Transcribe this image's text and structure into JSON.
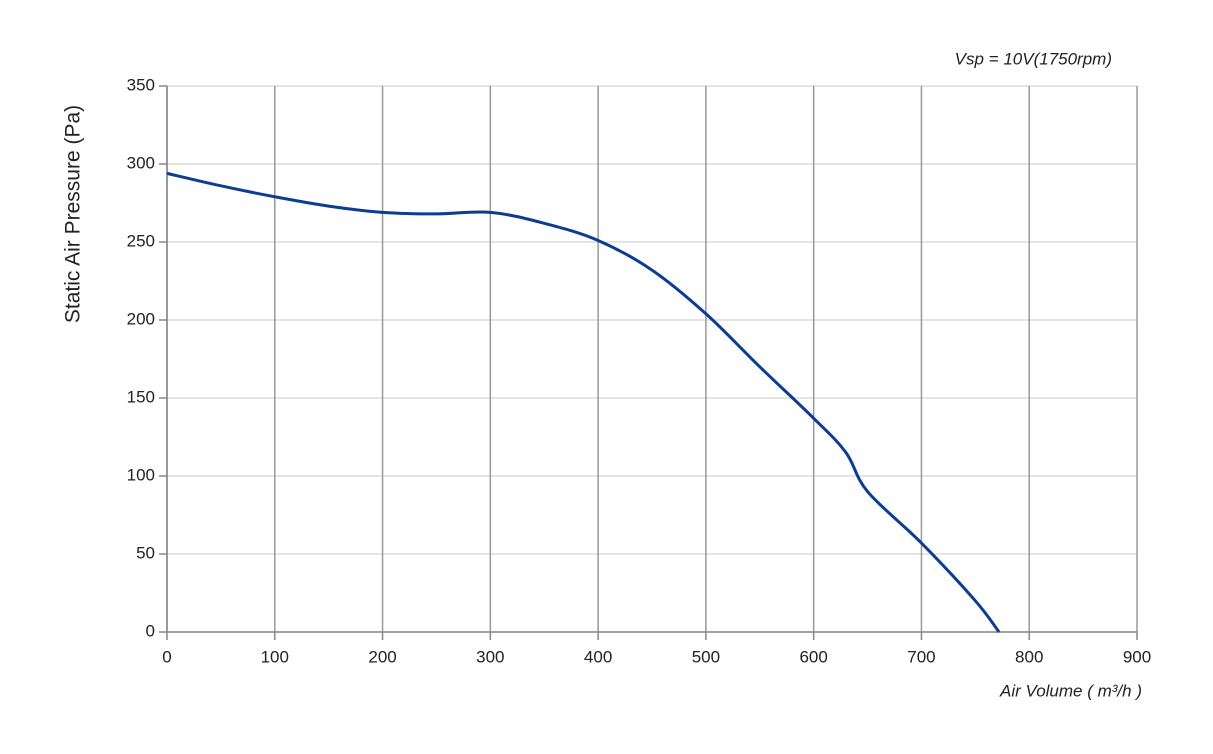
{
  "chart_data": {
    "type": "line",
    "title": "Vsp = 10V(1750rpm)",
    "y_label": "Static Air Pressure  (Pa)",
    "x_label": "Air Volume ( m³/h )",
    "x": [
      0,
      50,
      100,
      150,
      200,
      250,
      300,
      350,
      400,
      450,
      500,
      550,
      600,
      630,
      650,
      700,
      750,
      772
    ],
    "series": [
      {
        "name": "Vsp = 10V",
        "color": "#0b3d91",
        "values": [
          294,
          286,
          279,
          273,
          269,
          268,
          269,
          262,
          251,
          232,
          204,
          170,
          137,
          115,
          90,
          57,
          20,
          0
        ]
      }
    ],
    "xlim": [
      0,
      900
    ],
    "ylim": [
      0,
      350
    ],
    "xticks": [
      0,
      100,
      200,
      300,
      400,
      500,
      600,
      700,
      800,
      900
    ],
    "yticks": [
      0,
      50,
      100,
      150,
      200,
      250,
      300,
      350
    ],
    "grid": true
  }
}
